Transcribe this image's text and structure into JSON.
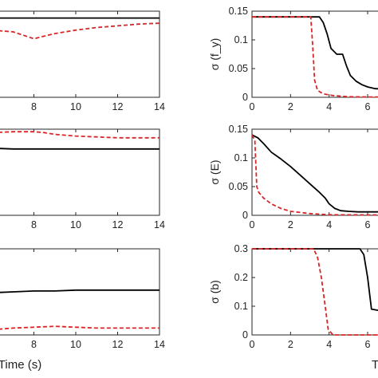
{
  "chart_data": [
    {
      "type": "line",
      "panel": "left-top",
      "xlim": [
        6,
        14
      ],
      "x_ticks": [
        "8",
        "10",
        "12",
        "14"
      ],
      "series": [
        {
          "color": "#000000",
          "style": "solid",
          "x": [
            6,
            8,
            10,
            12,
            14
          ],
          "y": [
            0.92,
            0.92,
            0.92,
            0.92,
            0.92
          ]
        },
        {
          "color": "#d62728",
          "style": "dashed",
          "x": [
            6,
            7,
            7.5,
            8,
            8.5,
            9,
            10,
            11,
            12,
            13,
            14
          ],
          "y": [
            0.78,
            0.76,
            0.72,
            0.68,
            0.71,
            0.74,
            0.78,
            0.81,
            0.83,
            0.85,
            0.86
          ]
        }
      ]
    },
    {
      "type": "line",
      "panel": "left-middle",
      "xlim": [
        6,
        14
      ],
      "x_ticks": [
        "8",
        "10",
        "12",
        "14"
      ],
      "series": [
        {
          "color": "#000000",
          "style": "solid",
          "x": [
            6,
            7,
            8,
            10,
            12,
            14
          ],
          "y": [
            0.78,
            0.77,
            0.77,
            0.77,
            0.77,
            0.77
          ]
        },
        {
          "color": "#d62728",
          "style": "dashed",
          "x": [
            6,
            7,
            8,
            8.5,
            9,
            10,
            11,
            12,
            13,
            14
          ],
          "y": [
            0.96,
            0.97,
            0.97,
            0.96,
            0.94,
            0.92,
            0.91,
            0.9,
            0.9,
            0.9
          ]
        }
      ]
    },
    {
      "type": "line",
      "panel": "left-bottom",
      "xlim": [
        6,
        14
      ],
      "x_ticks": [
        "8",
        "10",
        "12",
        "14"
      ],
      "xlabel": "Time (s)",
      "series": [
        {
          "color": "#000000",
          "style": "solid",
          "x": [
            6,
            7,
            8,
            9,
            10,
            11,
            12,
            13,
            14
          ],
          "y": [
            0.49,
            0.5,
            0.51,
            0.51,
            0.52,
            0.52,
            0.52,
            0.52,
            0.52
          ]
        },
        {
          "color": "#d62728",
          "style": "dashed",
          "x": [
            6,
            7,
            8,
            9,
            10,
            11,
            12,
            13,
            14
          ],
          "y": [
            0.06,
            0.08,
            0.09,
            0.1,
            0.09,
            0.08,
            0.08,
            0.08,
            0.08
          ]
        }
      ]
    },
    {
      "type": "line",
      "panel": "right-top",
      "ylabel": "σ (f_y)",
      "xlim": [
        0,
        7.2
      ],
      "ylim": [
        0,
        0.15
      ],
      "x_ticks": [
        "0",
        "2",
        "4",
        "6"
      ],
      "y_ticks": [
        "0",
        "0.05",
        "0.1",
        "0.15"
      ],
      "series": [
        {
          "color": "#000000",
          "style": "solid",
          "x": [
            0,
            3.2,
            3.5,
            3.7,
            3.9,
            4.1,
            4.4,
            4.6,
            4.7,
            4.9,
            5.1,
            5.4,
            5.7,
            6.0,
            6.4,
            7.2
          ],
          "y": [
            0.14,
            0.14,
            0.14,
            0.13,
            0.11,
            0.085,
            0.075,
            0.075,
            0.075,
            0.055,
            0.038,
            0.028,
            0.022,
            0.018,
            0.015,
            0.014
          ]
        },
        {
          "color": "#d62728",
          "style": "dashed",
          "x": [
            0,
            3.05,
            3.15,
            3.25,
            3.4,
            3.7,
            4.2,
            5.0,
            6.0,
            7.2
          ],
          "y": [
            0.14,
            0.14,
            0.09,
            0.03,
            0.012,
            0.006,
            0.003,
            0.001,
            0.0005,
            0.0005
          ]
        }
      ]
    },
    {
      "type": "line",
      "panel": "right-middle",
      "ylabel": "σ (E)",
      "xlim": [
        0,
        7.2
      ],
      "ylim": [
        0,
        0.15
      ],
      "x_ticks": [
        "0",
        "2",
        "4",
        "6"
      ],
      "y_ticks": [
        "0",
        "0.05",
        "0.1",
        "0.15"
      ],
      "series": [
        {
          "color": "#000000",
          "style": "solid",
          "x": [
            0,
            0.3,
            0.6,
            1.0,
            1.5,
            2.0,
            2.5,
            3.0,
            3.5,
            3.8,
            4.0,
            4.3,
            4.6,
            5.0,
            5.5,
            6.0,
            7.2
          ],
          "y": [
            0.14,
            0.135,
            0.125,
            0.11,
            0.098,
            0.085,
            0.07,
            0.055,
            0.04,
            0.03,
            0.02,
            0.012,
            0.008,
            0.007,
            0.006,
            0.006,
            0.006
          ]
        },
        {
          "color": "#d62728",
          "style": "dashed",
          "x": [
            0,
            0.15,
            0.25,
            0.35,
            0.6,
            1.0,
            1.5,
            2.0,
            3.0,
            4.0,
            7.2
          ],
          "y": [
            0.14,
            0.13,
            0.05,
            0.04,
            0.03,
            0.02,
            0.012,
            0.007,
            0.003,
            0.001,
            0.0005
          ]
        }
      ]
    },
    {
      "type": "line",
      "panel": "right-bottom",
      "ylabel": "σ (b)",
      "xlim": [
        0,
        7.2
      ],
      "ylim": [
        0,
        0.3
      ],
      "x_ticks": [
        "0",
        "2",
        "4",
        "6"
      ],
      "y_ticks": [
        "0",
        "0.1",
        "0.2",
        "0.3"
      ],
      "series": [
        {
          "color": "#000000",
          "style": "solid",
          "x": [
            0,
            5.3,
            5.6,
            5.8,
            6.0,
            6.2,
            6.6,
            7.2
          ],
          "y": [
            0.3,
            0.3,
            0.3,
            0.28,
            0.2,
            0.09,
            0.085,
            0.085
          ]
        },
        {
          "color": "#d62728",
          "style": "dashed",
          "x": [
            0,
            3.2,
            3.4,
            3.6,
            3.8,
            3.95,
            4.2,
            7.2
          ],
          "y": [
            0.3,
            0.3,
            0.27,
            0.2,
            0.1,
            0.02,
            0.0,
            0.0
          ]
        }
      ]
    }
  ]
}
